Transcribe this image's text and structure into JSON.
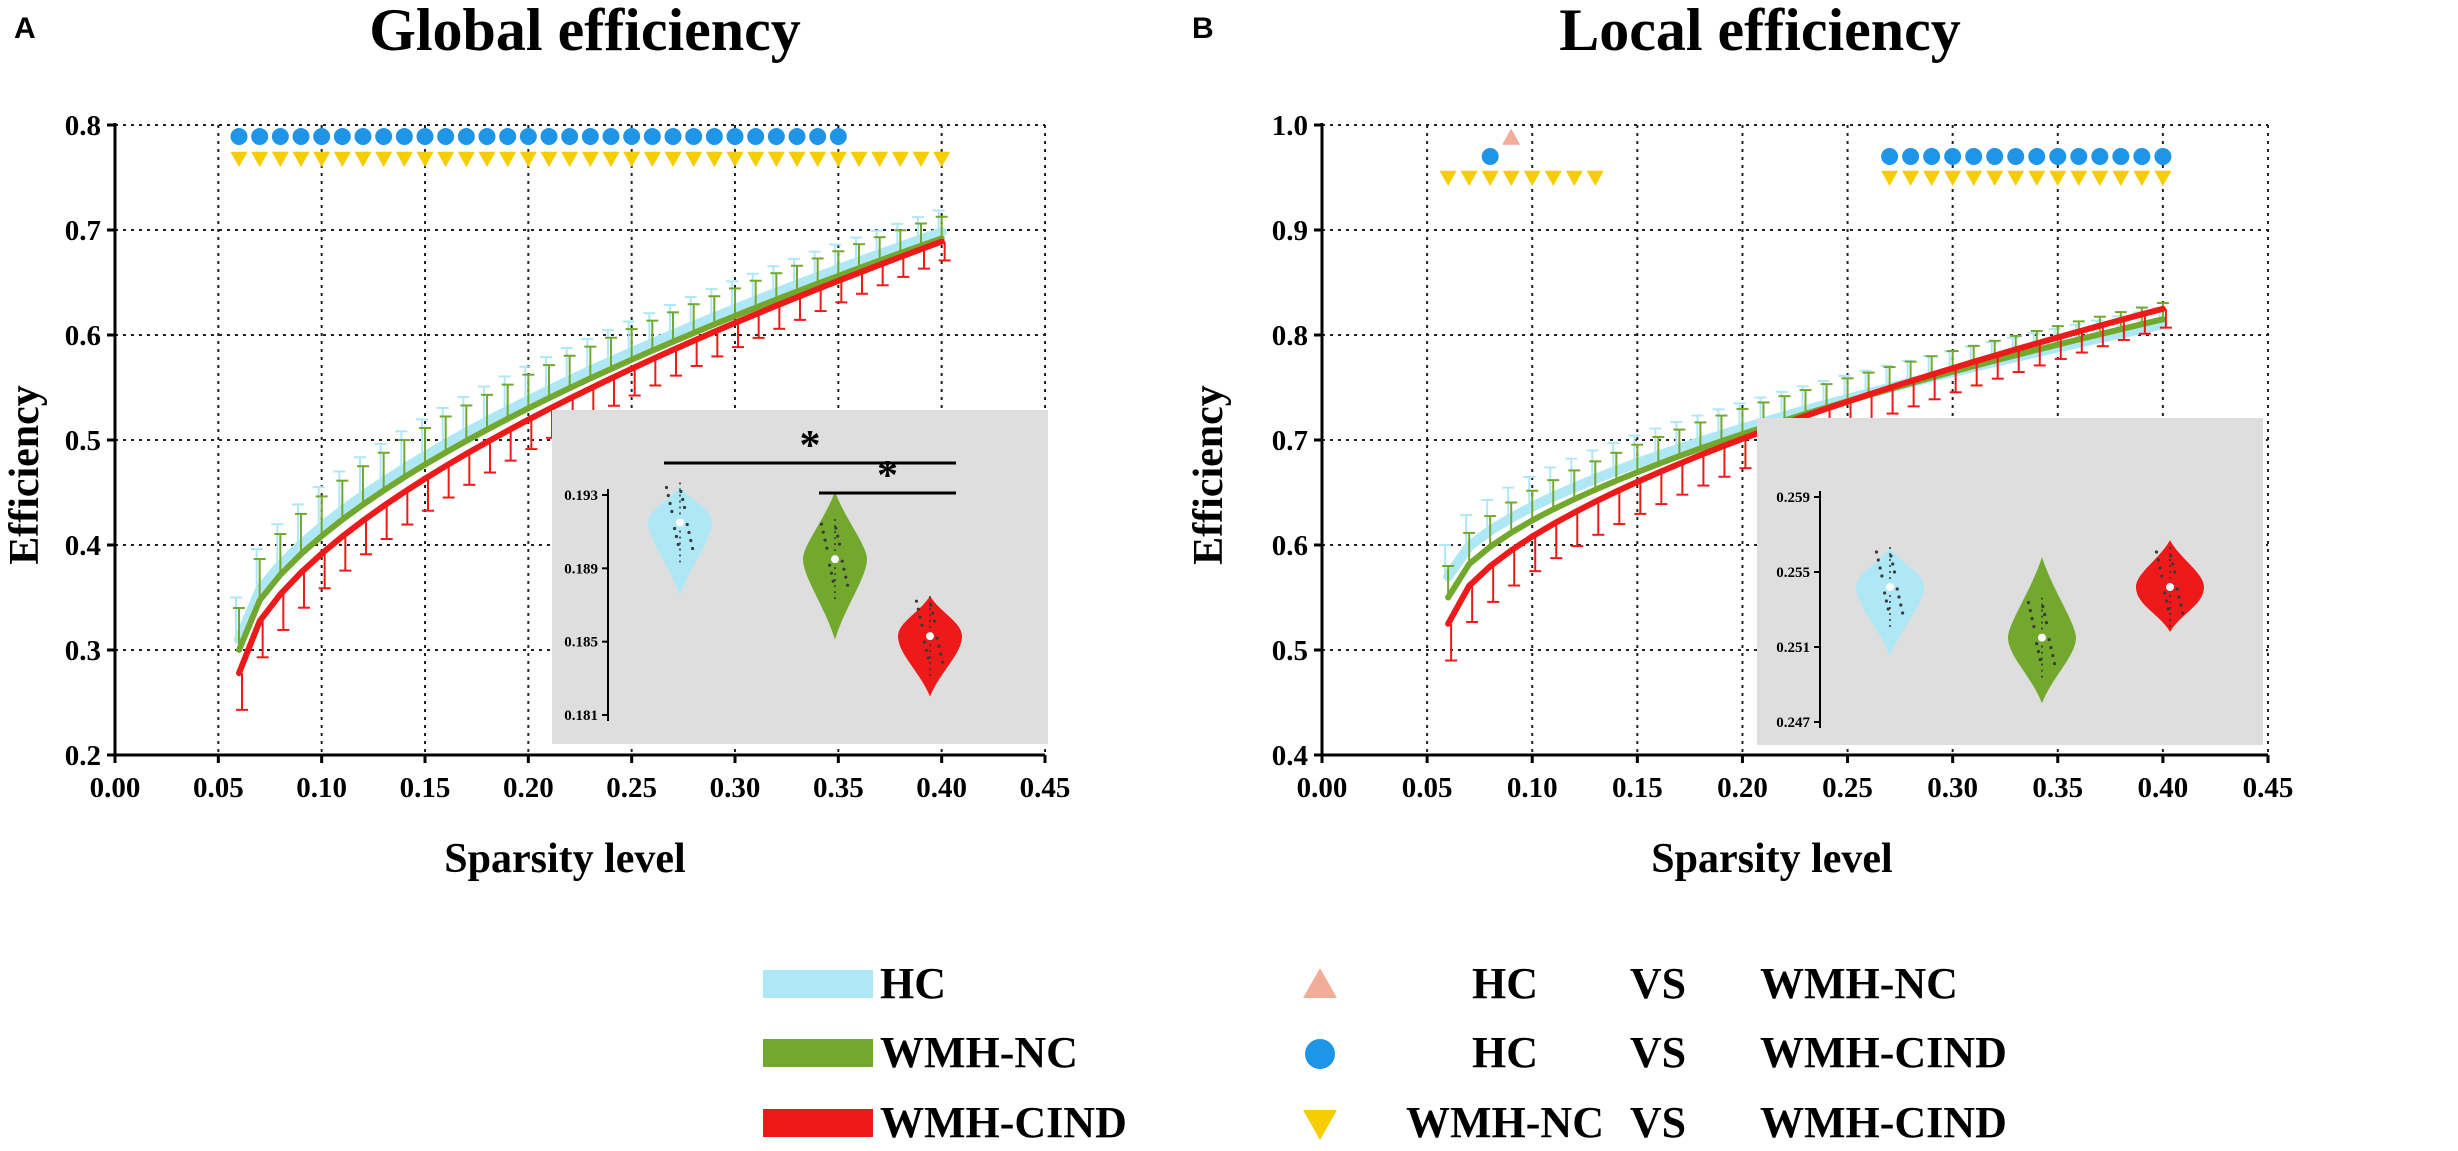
{
  "figure": {
    "legend": {
      "groups": [
        {
          "label": "HC",
          "color": "#aee8f6"
        },
        {
          "label": "WMH-NC",
          "color": "#73a82e"
        },
        {
          "label": "WMH-CIND",
          "color": "#ee1a1a"
        }
      ],
      "comparisons": [
        {
          "a": "HC",
          "vs": "VS",
          "b": "WMH-NC",
          "marker": "triangle-up",
          "color": "#f2ac9a"
        },
        {
          "a": "HC",
          "vs": "VS",
          "b": "WMH-CIND",
          "marker": "circle",
          "color": "#1f95e8"
        },
        {
          "a": "WMH-NC",
          "vs": "VS",
          "b": "WMH-CIND",
          "marker": "triangle-down",
          "color": "#f5cd00"
        }
      ]
    }
  },
  "chart_data": [
    {
      "panel": "A",
      "type": "line",
      "title": "Global efficiency",
      "xlabel": "Sparsity level",
      "ylabel": "Efficiency",
      "xlim": [
        0.0,
        0.45
      ],
      "ylim": [
        0.2,
        0.8
      ],
      "xticks": [
        "0.00",
        "0.05",
        "0.10",
        "0.15",
        "0.20",
        "0.25",
        "0.30",
        "0.35",
        "0.40",
        "0.45"
      ],
      "yticks": [
        "0.2",
        "0.3",
        "0.4",
        "0.5",
        "0.6",
        "0.7",
        "0.8"
      ],
      "grid": true,
      "x": [
        0.06,
        0.07,
        0.08,
        0.09,
        0.1,
        0.11,
        0.12,
        0.13,
        0.14,
        0.15,
        0.16,
        0.17,
        0.18,
        0.19,
        0.2,
        0.21,
        0.22,
        0.23,
        0.24,
        0.25,
        0.26,
        0.27,
        0.28,
        0.29,
        0.3,
        0.31,
        0.32,
        0.33,
        0.34,
        0.35,
        0.36,
        0.37,
        0.38,
        0.39,
        0.4
      ],
      "series": [
        {
          "name": "HC",
          "color": "#aee8f6",
          "start": 0.31,
          "end": 0.698,
          "error": 0.04
        },
        {
          "name": "WMH-NC",
          "color": "#73a82e",
          "start": 0.3,
          "end": 0.692,
          "error": 0.04
        },
        {
          "name": "WMH-CIND",
          "color": "#ee1a1a",
          "start": 0.278,
          "end": 0.689,
          "error": 0.035
        }
      ],
      "significance": [
        {
          "comparison": "HC VS WMH-CIND",
          "marker": "circle",
          "color": "#1f95e8",
          "y": 0.789,
          "x_from": 0.06,
          "x_to": 0.35
        },
        {
          "comparison": "WMH-NC VS WMH-CIND",
          "marker": "triangle-down",
          "color": "#f5cd00",
          "y": 0.768,
          "x_from": 0.06,
          "x_to": 0.4
        }
      ],
      "inset": {
        "type": "violin",
        "yticks": [
          "0.181",
          "0.185",
          "0.189",
          "0.193"
        ],
        "ylim": [
          0.181,
          0.193
        ],
        "groups": [
          {
            "name": "HC",
            "color": "#aee8f6",
            "median": 0.1915,
            "min": 0.1875,
            "max": 0.1935
          },
          {
            "name": "WMH-NC",
            "color": "#73a82e",
            "median": 0.1895,
            "min": 0.1851,
            "max": 0.1932
          },
          {
            "name": "WMH-CIND",
            "color": "#ee1a1a",
            "median": 0.1853,
            "min": 0.182,
            "max": 0.1875
          }
        ],
        "brackets": [
          {
            "from": "HC",
            "to": "WMH-CIND",
            "label": "*"
          },
          {
            "from": "WMH-NC",
            "to": "WMH-CIND",
            "label": "*"
          }
        ]
      }
    },
    {
      "panel": "B",
      "type": "line",
      "title": "Local efficiency",
      "xlabel": "Sparsity level",
      "ylabel": "Efficiency",
      "xlim": [
        0.0,
        0.45
      ],
      "ylim": [
        0.4,
        1.0
      ],
      "xticks": [
        "0.00",
        "0.05",
        "0.10",
        "0.15",
        "0.20",
        "0.25",
        "0.30",
        "0.35",
        "0.40",
        "0.45"
      ],
      "yticks": [
        "0.4",
        "0.5",
        "0.6",
        "0.7",
        "0.8",
        "0.9",
        "1.0"
      ],
      "grid": true,
      "x": [
        0.06,
        0.07,
        0.08,
        0.09,
        0.1,
        0.11,
        0.12,
        0.13,
        0.14,
        0.15,
        0.16,
        0.17,
        0.18,
        0.19,
        0.2,
        0.21,
        0.22,
        0.23,
        0.24,
        0.25,
        0.26,
        0.27,
        0.28,
        0.29,
        0.3,
        0.31,
        0.32,
        0.33,
        0.34,
        0.35,
        0.36,
        0.37,
        0.38,
        0.39,
        0.4
      ],
      "series": [
        {
          "name": "HC",
          "color": "#aee8f6",
          "start": 0.57,
          "end": 0.81,
          "error": 0.03
        },
        {
          "name": "WMH-NC",
          "color": "#73a82e",
          "start": 0.55,
          "end": 0.815,
          "error": 0.03
        },
        {
          "name": "WMH-CIND",
          "color": "#ee1a1a",
          "start": 0.525,
          "end": 0.825,
          "error": 0.035
        }
      ],
      "significance": [
        {
          "comparison": "HC VS WMH-NC",
          "marker": "triangle-up",
          "color": "#f2ac9a",
          "y": 0.988,
          "x_from": 0.09,
          "x_to": 0.09
        },
        {
          "comparison": "HC VS WMH-CIND",
          "marker": "circle",
          "color": "#1f95e8",
          "y": 0.97,
          "x_from": 0.08,
          "x_to": 0.08
        },
        {
          "comparison": "HC VS WMH-CIND",
          "marker": "circle",
          "color": "#1f95e8",
          "y": 0.97,
          "x_from": 0.27,
          "x_to": 0.4
        },
        {
          "comparison": "WMH-NC VS WMH-CIND",
          "marker": "triangle-down",
          "color": "#f5cd00",
          "y": 0.95,
          "x_from": 0.06,
          "x_to": 0.13
        },
        {
          "comparison": "WMH-NC VS WMH-CIND",
          "marker": "triangle-down",
          "color": "#f5cd00",
          "y": 0.95,
          "x_from": 0.27,
          "x_to": 0.4
        }
      ],
      "inset": {
        "type": "violin",
        "yticks": [
          "0.247",
          "0.251",
          "0.255",
          "0.259"
        ],
        "ylim": [
          0.247,
          0.259
        ],
        "groups": [
          {
            "name": "HC",
            "color": "#aee8f6",
            "median": 0.2542,
            "min": 0.2505,
            "max": 0.2563
          },
          {
            "name": "WMH-NC",
            "color": "#73a82e",
            "median": 0.2515,
            "min": 0.248,
            "max": 0.2558
          },
          {
            "name": "WMH-CIND",
            "color": "#ee1a1a",
            "median": 0.2542,
            "min": 0.2518,
            "max": 0.2567
          }
        ],
        "brackets": []
      }
    }
  ]
}
